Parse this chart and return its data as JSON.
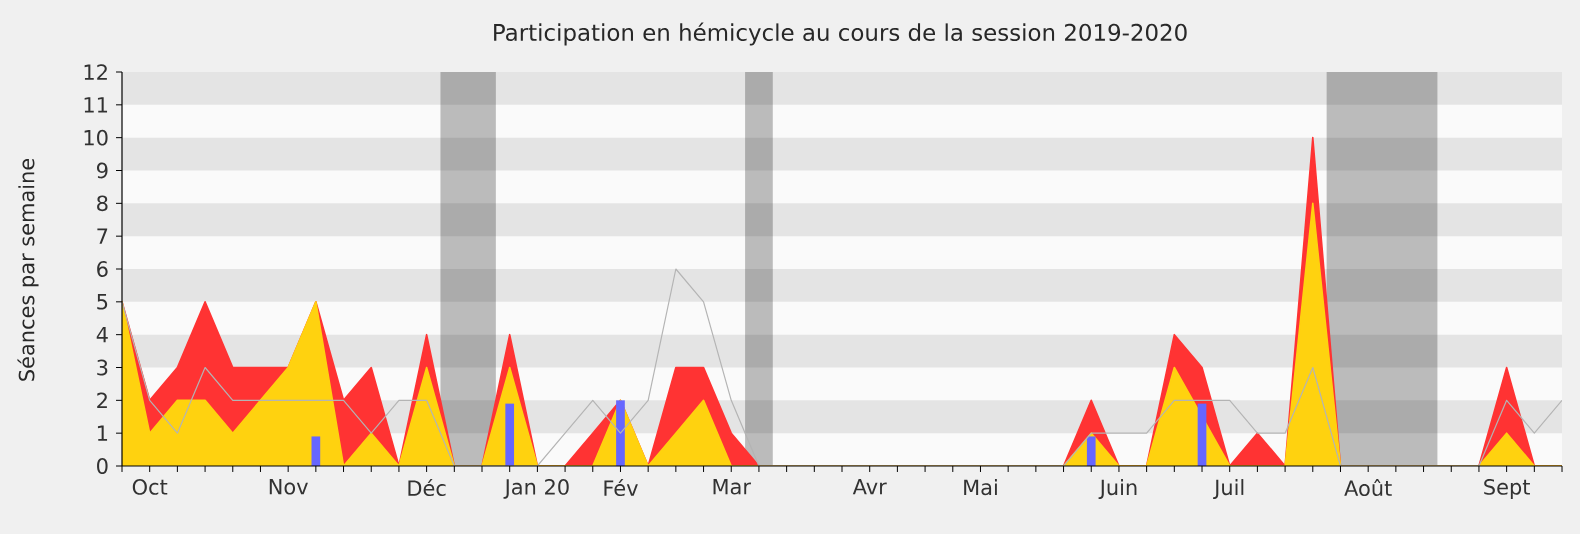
{
  "chart_data": {
    "type": "area",
    "title": "Participation en hémicycle au cours de la session 2019-2020",
    "ylabel": "Séances par semaine",
    "x": [
      "2019-09-29",
      "2019-10-06",
      "2019-10-13",
      "2019-10-20",
      "2019-10-27",
      "2019-11-03",
      "2019-11-10",
      "2019-11-17",
      "2019-11-24",
      "2019-12-01",
      "2019-12-08",
      "2019-12-15",
      "2019-12-22",
      "2019-12-29",
      "2020-01-05",
      "2020-01-12",
      "2020-01-19",
      "2020-01-26",
      "2020-02-02",
      "2020-02-09",
      "2020-02-16",
      "2020-02-23",
      "2020-03-01",
      "2020-03-08",
      "2020-03-15",
      "2020-03-22",
      "2020-03-29",
      "2020-04-05",
      "2020-04-12",
      "2020-04-19",
      "2020-04-26",
      "2020-05-03",
      "2020-05-10",
      "2020-05-17",
      "2020-05-24",
      "2020-05-31",
      "2020-06-07",
      "2020-06-14",
      "2020-06-21",
      "2020-06-28",
      "2020-07-05",
      "2020-07-12",
      "2020-07-19",
      "2020-07-26",
      "2020-08-02",
      "2020-08-09",
      "2020-08-16",
      "2020-08-23",
      "2020-08-30",
      "2020-09-06",
      "2020-09-13",
      "2020-09-20",
      "2020-09-27"
    ],
    "xlim": [
      "2019-09-29",
      "2020-09-27"
    ],
    "ylim": [
      0,
      12
    ],
    "xticks": [
      {
        "value": "2019-09-29",
        "label": null
      },
      {
        "value": "2019-10-06",
        "label": "Oct"
      },
      {
        "value": "2019-10-13",
        "label": null
      },
      {
        "value": "2019-10-20",
        "label": null
      },
      {
        "value": "2019-10-27",
        "label": null
      },
      {
        "value": "2019-11-03",
        "label": null
      },
      {
        "value": "2019-11-10",
        "label": "Nov"
      },
      {
        "value": "2019-11-17",
        "label": null
      },
      {
        "value": "2019-11-24",
        "label": null
      },
      {
        "value": "2019-12-01",
        "label": null
      },
      {
        "value": "2019-12-08",
        "label": null
      },
      {
        "value": "2019-12-15",
        "label": "Déc"
      },
      {
        "value": "2019-12-22",
        "label": null
      },
      {
        "value": "2019-12-29",
        "label": null
      },
      {
        "value": "2020-01-05",
        "label": null
      },
      {
        "value": "2020-01-12",
        "label": "Jan 20"
      },
      {
        "value": "2020-01-19",
        "label": null
      },
      {
        "value": "2020-01-26",
        "label": null
      },
      {
        "value": "2020-02-02",
        "label": "Fév"
      },
      {
        "value": "2020-02-09",
        "label": null
      },
      {
        "value": "2020-02-16",
        "label": null
      },
      {
        "value": "2020-02-23",
        "label": null
      },
      {
        "value": "2020-03-01",
        "label": "Mar"
      },
      {
        "value": "2020-03-08",
        "label": null
      },
      {
        "value": "2020-03-15",
        "label": null
      },
      {
        "value": "2020-03-22",
        "label": null
      },
      {
        "value": "2020-03-29",
        "label": null
      },
      {
        "value": "2020-04-05",
        "label": "Avr"
      },
      {
        "value": "2020-04-12",
        "label": null
      },
      {
        "value": "2020-04-19",
        "label": null
      },
      {
        "value": "2020-04-26",
        "label": null
      },
      {
        "value": "2020-05-03",
        "label": "Mai"
      },
      {
        "value": "2020-05-10",
        "label": null
      },
      {
        "value": "2020-05-17",
        "label": null
      },
      {
        "value": "2020-05-24",
        "label": null
      },
      {
        "value": "2020-05-31",
        "label": null
      },
      {
        "value": "2020-06-07",
        "label": "Juin"
      },
      {
        "value": "2020-06-14",
        "label": null
      },
      {
        "value": "2020-06-21",
        "label": null
      },
      {
        "value": "2020-06-28",
        "label": null
      },
      {
        "value": "2020-07-05",
        "label": "Juil"
      },
      {
        "value": "2020-07-12",
        "label": null
      },
      {
        "value": "2020-07-19",
        "label": null
      },
      {
        "value": "2020-07-26",
        "label": null
      },
      {
        "value": "2020-08-02",
        "label": null
      },
      {
        "value": "2020-08-09",
        "label": "Août"
      },
      {
        "value": "2020-08-16",
        "label": null
      },
      {
        "value": "2020-08-23",
        "label": null
      },
      {
        "value": "2020-08-30",
        "label": null
      },
      {
        "value": "2020-09-06",
        "label": null
      },
      {
        "value": "2020-09-13",
        "label": "Sept"
      },
      {
        "value": "2020-09-20",
        "label": null
      },
      {
        "value": "2020-09-27",
        "label": null
      }
    ],
    "yticks": [
      0,
      1,
      2,
      3,
      4,
      5,
      6,
      7,
      8,
      9,
      10,
      11,
      12
    ],
    "bands": [
      {
        "axis": "y",
        "from": 1,
        "to": 2,
        "color": "#e4e4e4"
      },
      {
        "axis": "y",
        "from": 3,
        "to": 4,
        "color": "#e4e4e4"
      },
      {
        "axis": "y",
        "from": 5,
        "to": 6,
        "color": "#e4e4e4"
      },
      {
        "axis": "y",
        "from": 7,
        "to": 8,
        "color": "#e4e4e4"
      },
      {
        "axis": "y",
        "from": 9,
        "to": 10,
        "color": "#e4e4e4"
      },
      {
        "axis": "y",
        "from": 11,
        "to": 12,
        "color": "#e4e4e4"
      },
      {
        "axis": "x",
        "from": "2019-12-18T12:00",
        "to": "2020-01-01T12:00",
        "color": "#000000"
      },
      {
        "axis": "x",
        "from": "2020-03-04T12:00",
        "to": "2020-03-11T12:00",
        "color": "#000000"
      },
      {
        "axis": "x",
        "from": "2020-07-29T12:00",
        "to": "2020-08-26T12:00",
        "color": "#000000"
      }
    ],
    "series": [
      {
        "color": "#ff3333",
        "values": [
          5,
          2,
          3,
          5,
          3,
          3,
          3,
          5,
          2,
          3,
          0,
          4,
          0,
          0,
          4,
          0,
          0,
          1,
          2,
          0,
          3,
          3,
          1,
          0,
          0,
          0,
          0,
          0,
          0,
          0,
          0,
          0,
          0,
          0,
          0,
          2,
          0,
          0,
          4,
          3,
          0,
          1,
          0,
          10,
          0,
          0,
          0,
          0,
          0,
          0,
          3,
          0,
          0
        ]
      },
      {
        "color": "#ffd20f",
        "values": [
          5,
          1,
          2,
          2,
          1,
          2,
          3,
          5,
          0,
          1,
          0,
          3,
          0,
          0,
          3,
          0,
          0,
          0,
          2,
          0,
          1,
          2,
          0,
          0,
          0,
          0,
          0,
          0,
          0,
          0,
          0,
          0,
          0,
          0,
          0,
          1,
          0,
          0,
          3,
          null,
          0,
          0,
          0,
          8,
          0,
          0,
          0,
          0,
          0,
          0,
          1,
          0,
          0
        ]
      },
      {
        "type": "bar",
        "color": "#6666ff",
        "values": [
          null,
          null,
          null,
          null,
          null,
          null,
          null,
          0.9,
          null,
          null,
          null,
          null,
          null,
          null,
          1.9,
          null,
          null,
          null,
          2,
          null,
          null,
          null,
          null,
          null,
          null,
          null,
          null,
          null,
          null,
          null,
          null,
          null,
          null,
          null,
          null,
          0.9,
          null,
          null,
          null,
          1.9,
          null,
          null,
          null,
          null,
          null,
          null,
          null,
          null,
          null,
          null,
          null,
          null,
          null
        ]
      },
      {
        "type": "line",
        "color": "#b4b4b4",
        "values": [
          5,
          2,
          1,
          3,
          2,
          2,
          2,
          2,
          2,
          1,
          2,
          2,
          0,
          0,
          0,
          0,
          1,
          2,
          1,
          2,
          6,
          5,
          2,
          0,
          0,
          0,
          0,
          0,
          0,
          0,
          0,
          0,
          0,
          0,
          0,
          1,
          1,
          1,
          2,
          2,
          2,
          1,
          1,
          3,
          0,
          0,
          0,
          0,
          0,
          0,
          2,
          1,
          2
        ]
      }
    ]
  }
}
